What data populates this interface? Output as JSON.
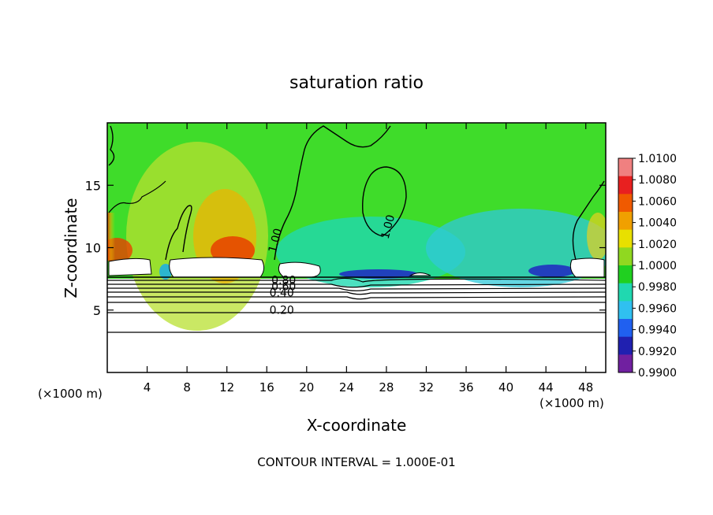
{
  "chart_data": {
    "type": "heatmap",
    "title": "saturation ratio",
    "xlabel": "X-coordinate",
    "ylabel": "Z-coordinate",
    "x_unit_left": "(×1000 m)",
    "x_unit_right": "(×1000 m)",
    "xlim": [
      0,
      50
    ],
    "ylim": [
      0,
      20
    ],
    "xticks": [
      "4",
      "8",
      "12",
      "16",
      "20",
      "24",
      "28",
      "32",
      "36",
      "40",
      "44",
      "48"
    ],
    "xtick_values": [
      4,
      8,
      12,
      16,
      20,
      24,
      28,
      32,
      36,
      40,
      44,
      48
    ],
    "yticks": [
      "5",
      "10",
      "15"
    ],
    "ytick_values": [
      5,
      10,
      15
    ],
    "footer": "CONTOUR INTERVAL = 1.000E-01",
    "contour_interval": 0.1,
    "contour_labels": [
      {
        "text": "1.00",
        "x": 17.2,
        "y": 10.5
      },
      {
        "text": "1.00",
        "x": 28.5,
        "y": 11.6
      },
      {
        "text": "0.80",
        "x": 17.7,
        "y": 7.1
      },
      {
        "text": "0.60",
        "x": 17.7,
        "y": 6.6
      },
      {
        "text": "0.40",
        "x": 17.5,
        "y": 6.1
      },
      {
        "text": "0.20",
        "x": 17.5,
        "y": 4.7
      }
    ],
    "colorbar": {
      "labels": [
        "1.0100",
        "1.0080",
        "1.0060",
        "1.0040",
        "1.0020",
        "1.0000",
        "0.9980",
        "0.9960",
        "0.9940",
        "0.9920",
        "0.9900"
      ],
      "values": [
        1.01,
        1.008,
        1.006,
        1.004,
        1.002,
        1.0,
        0.998,
        0.996,
        0.994,
        0.992,
        0.99
      ],
      "colors": [
        "#f08080",
        "#e82020",
        "#f05a00",
        "#f0a000",
        "#e8e000",
        "#90d820",
        "#20d020",
        "#20d8b0",
        "#30c0f0",
        "#2060f0",
        "#2020b0",
        "#7020a0"
      ]
    }
  }
}
